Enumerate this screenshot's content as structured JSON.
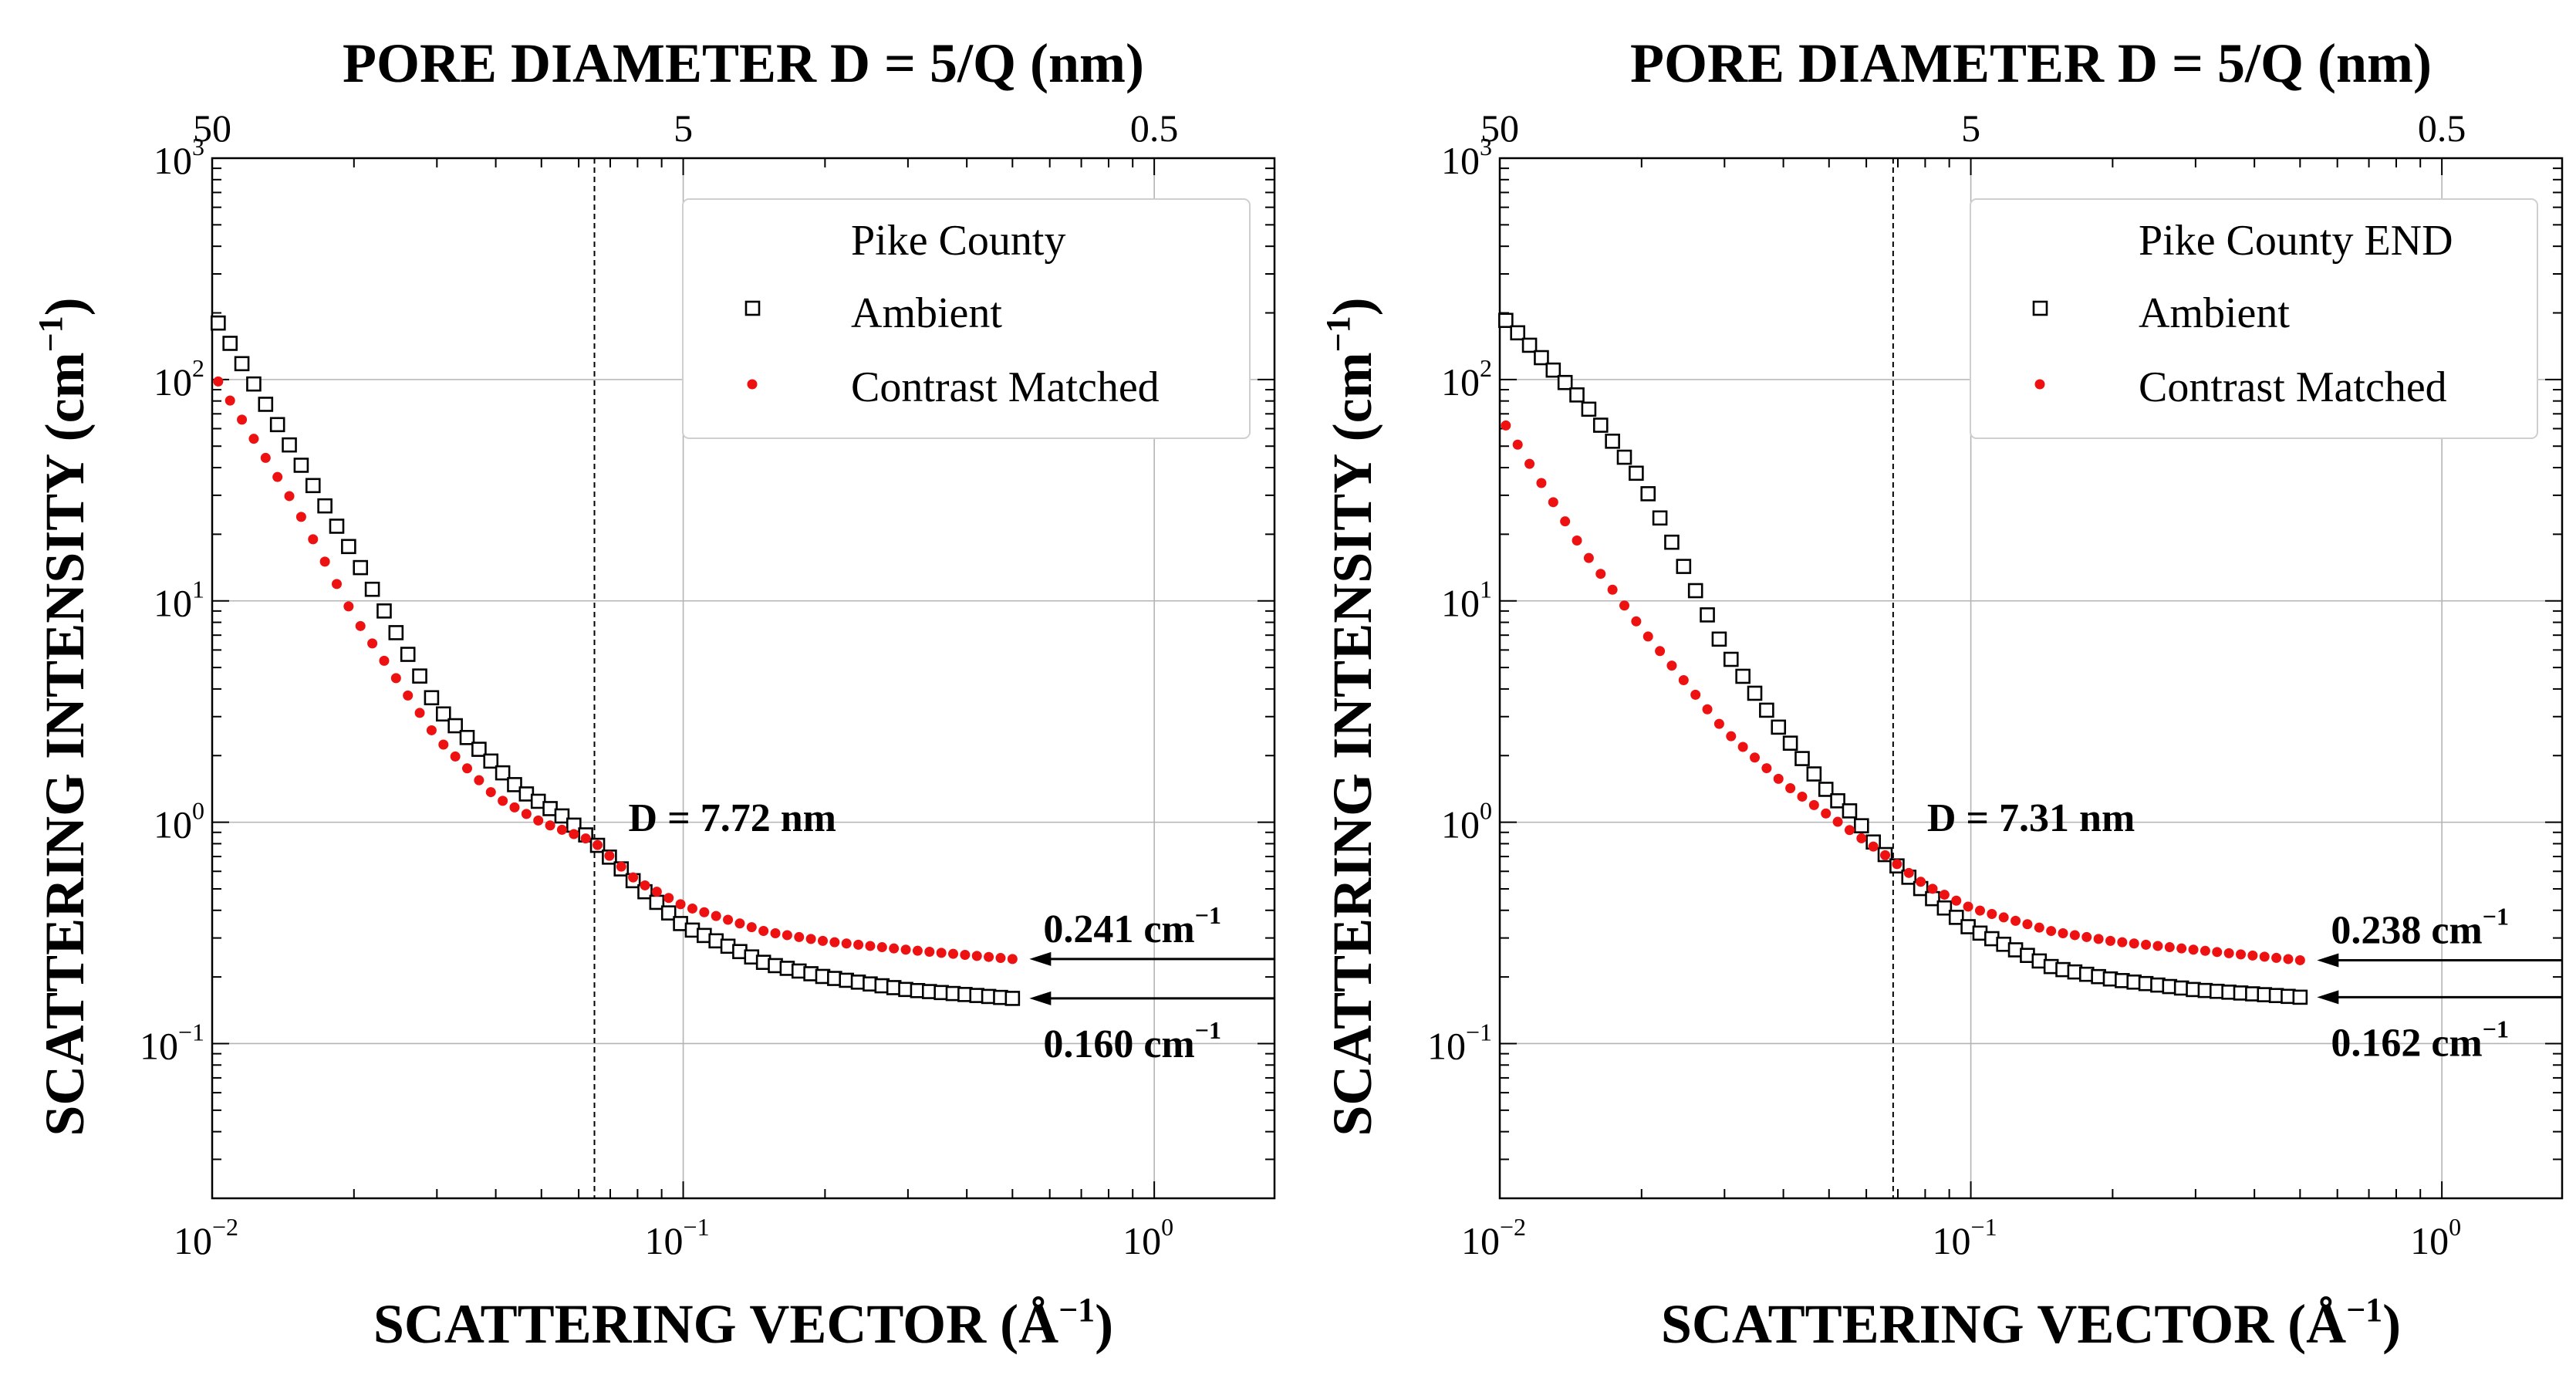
{
  "chart_data": [
    {
      "type": "scatter",
      "xscale": "log",
      "yscale": "log",
      "xlim": [
        0.01,
        1.8
      ],
      "ylim": [
        0.02,
        1000
      ],
      "top_axis_label": "PORE DIAMETER D = 5/Q (nm)",
      "top_ticks": [
        "50",
        "5",
        "0.5"
      ],
      "xlabel_prefix": "SCATTERING VECTOR (Å",
      "xlabel_exp": "−1",
      "xlabel_suffix": ")",
      "ylabel_prefix": "SCATTERING INTENSITY (cm",
      "ylabel_exp": "−1",
      "ylabel_suffix": ")",
      "x_tick_bases": [
        "10",
        "10",
        "10"
      ],
      "x_tick_exps": [
        "−2",
        "−1",
        "0"
      ],
      "y_tick_bases": [
        "10",
        "10",
        "10",
        "10",
        "10"
      ],
      "y_tick_exps": [
        "−1",
        "0",
        "1",
        "2",
        "3"
      ],
      "legend_title": "Pike County",
      "legend_labels": [
        "Ambient",
        "Contrast Matched"
      ],
      "cutoff_q": 0.0648,
      "cutoff_label": "D = 7.72 nm",
      "series": [
        {
          "name": "Ambient",
          "q_start": 0.0103,
          "q_end": 0.5,
          "count": 68,
          "anchors": [
            [
              0.0103,
              180
            ],
            [
              0.02,
              16
            ],
            [
              0.03,
              3.3
            ],
            [
              0.045,
              1.4
            ],
            [
              0.056,
              1.05
            ],
            [
              0.0645,
              0.82
            ],
            [
              0.08,
              0.52
            ],
            [
              0.1,
              0.34
            ],
            [
              0.15,
              0.23
            ],
            [
              0.2,
              0.2
            ],
            [
              0.3,
              0.175
            ],
            [
              0.5,
              0.16
            ]
          ]
        },
        {
          "name": "Contrast Matched",
          "q_start": 0.0103,
          "q_end": 0.5,
          "count": 68,
          "anchors": [
            [
              0.0103,
              98
            ],
            [
              0.015,
              27
            ],
            [
              0.02,
              8.5
            ],
            [
              0.03,
              2.4
            ],
            [
              0.04,
              1.3
            ],
            [
              0.05,
              1.0
            ],
            [
              0.0645,
              0.82
            ],
            [
              0.08,
              0.54
            ],
            [
              0.1,
              0.42
            ],
            [
              0.15,
              0.32
            ],
            [
              0.2,
              0.29
            ],
            [
              0.3,
              0.265
            ],
            [
              0.5,
              0.241
            ]
          ]
        }
      ],
      "annotations": [
        {
          "value": "0.241 cm",
          "exp": "−1",
          "y": 0.241,
          "label_above": true
        },
        {
          "value": "0.160 cm",
          "exp": "−1",
          "y": 0.16,
          "label_above": false
        }
      ]
    },
    {
      "type": "scatter",
      "xscale": "log",
      "yscale": "log",
      "xlim": [
        0.01,
        1.8
      ],
      "ylim": [
        0.02,
        1000
      ],
      "top_axis_label": "PORE DIAMETER D = 5/Q (nm)",
      "top_ticks": [
        "50",
        "5",
        "0.5"
      ],
      "xlabel_prefix": "SCATTERING VECTOR (Å",
      "xlabel_exp": "−1",
      "xlabel_suffix": ")",
      "ylabel_prefix": "SCATTERING INTENSITY (cm",
      "ylabel_exp": "−1",
      "ylabel_suffix": ")",
      "x_tick_bases": [
        "10",
        "10",
        "10"
      ],
      "x_tick_exps": [
        "−2",
        "−1",
        "0"
      ],
      "y_tick_bases": [
        "10",
        "10",
        "10",
        "10",
        "10"
      ],
      "y_tick_exps": [
        "−1",
        "0",
        "1",
        "2",
        "3"
      ],
      "legend_title": "Pike County END",
      "legend_labels": [
        "Ambient",
        "Contrast Matched"
      ],
      "cutoff_q": 0.0684,
      "cutoff_label": "D = 7.31 nm",
      "series": [
        {
          "name": "Ambient",
          "q_start": 0.0103,
          "q_end": 0.5,
          "count": 68,
          "anchors": [
            [
              0.0103,
              185
            ],
            [
              0.015,
              80
            ],
            [
              0.02,
              35
            ],
            [
              0.03,
              6
            ],
            [
              0.04,
              2.5
            ],
            [
              0.05,
              1.35
            ],
            [
              0.056,
              1.1
            ],
            [
              0.063,
              0.78
            ],
            [
              0.08,
              0.48
            ],
            [
              0.1,
              0.33
            ],
            [
              0.15,
              0.22
            ],
            [
              0.2,
              0.195
            ],
            [
              0.3,
              0.175
            ],
            [
              0.5,
              0.162
            ]
          ]
        },
        {
          "name": "Contrast Matched",
          "q_start": 0.0103,
          "q_end": 0.5,
          "count": 68,
          "anchors": [
            [
              0.0103,
              62
            ],
            [
              0.015,
              17
            ],
            [
              0.02,
              7.5
            ],
            [
              0.03,
              2.6
            ],
            [
              0.04,
              1.5
            ],
            [
              0.05,
              1.07
            ],
            [
              0.063,
              0.76
            ],
            [
              0.08,
              0.52
            ],
            [
              0.1,
              0.41
            ],
            [
              0.15,
              0.32
            ],
            [
              0.2,
              0.29
            ],
            [
              0.3,
              0.265
            ],
            [
              0.5,
              0.238
            ]
          ]
        }
      ],
      "annotations": [
        {
          "value": "0.238 cm",
          "exp": "−1",
          "y": 0.238,
          "label_above": true
        },
        {
          "value": "0.162 cm",
          "exp": "−1",
          "y": 0.162,
          "label_above": false
        }
      ]
    }
  ]
}
